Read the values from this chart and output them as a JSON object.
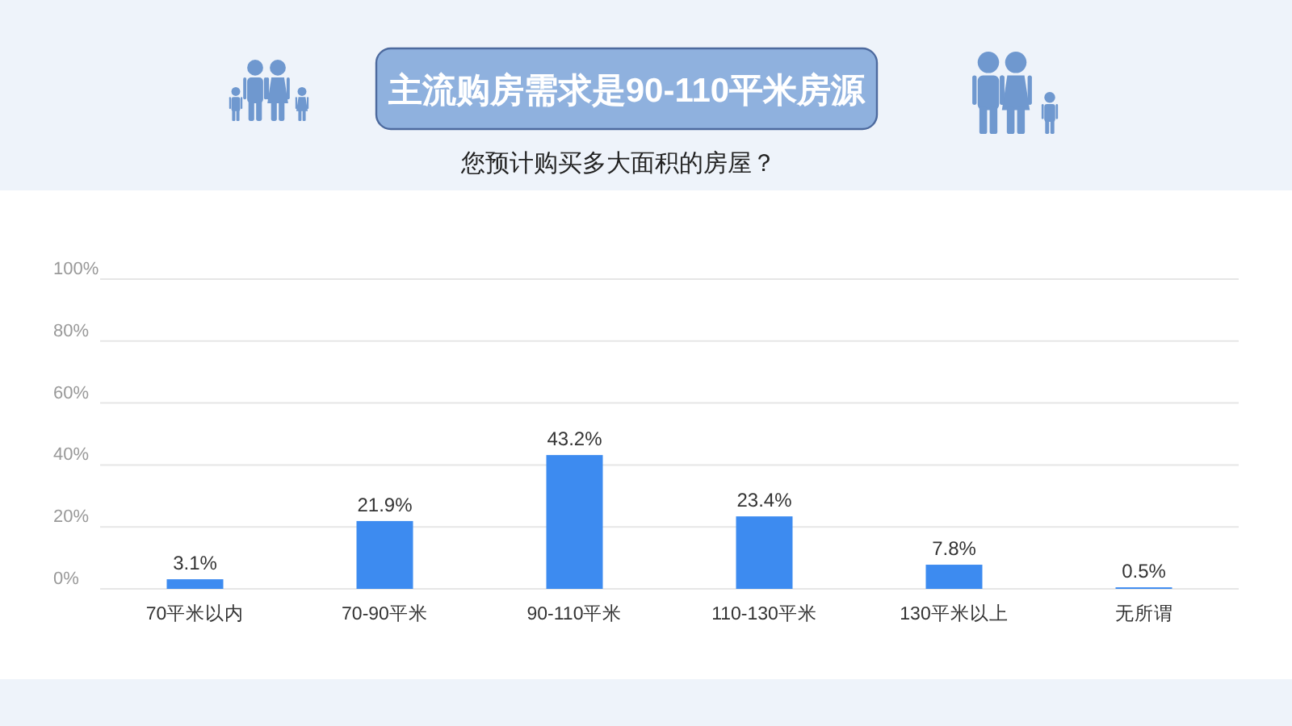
{
  "chart_data": {
    "type": "bar",
    "title": "主流购房需求是90-110平米房源",
    "subtitle": "您预计购买多大面积的房屋？",
    "categories": [
      "70平米以内",
      "70-90平米",
      "90-110平米",
      "110-130平米",
      "130平米以上",
      "无所谓"
    ],
    "values": [
      3.1,
      21.9,
      43.2,
      23.4,
      7.8,
      0.5
    ],
    "value_labels": [
      "3.1%",
      "21.9%",
      "43.2%",
      "23.4%",
      "7.8%",
      "0.5%"
    ],
    "color": "#3d8bf0",
    "ylim": [
      0,
      100
    ],
    "yticks": [
      {
        "value": 0,
        "label": "0%"
      },
      {
        "value": 20,
        "label": "20%"
      },
      {
        "value": 40,
        "label": "40%"
      },
      {
        "value": 60,
        "label": "60%"
      },
      {
        "value": 80,
        "label": "80%"
      },
      {
        "value": 100,
        "label": "100%"
      }
    ],
    "grid": "y"
  }
}
